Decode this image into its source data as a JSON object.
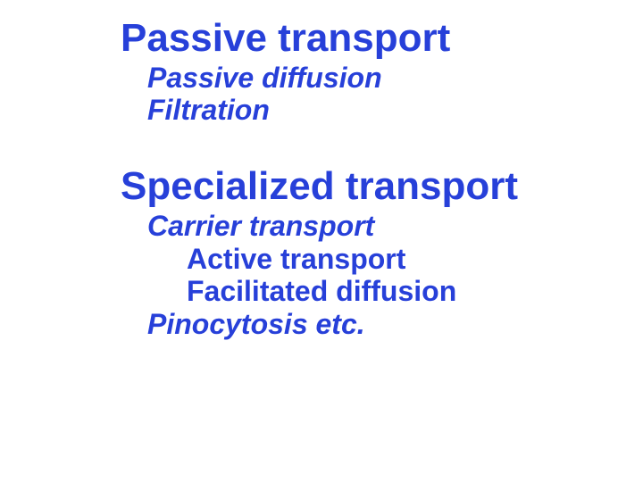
{
  "colors": {
    "heading": "#2740d9",
    "sub": "#2740d9",
    "subsub": "#2740d9",
    "background": "#ffffff"
  },
  "fontsizes": {
    "heading_pt": 44,
    "sub_pt": 32,
    "subsub_pt": 32
  },
  "group1": {
    "heading": "Passive transport",
    "items": [
      "Passive diffusion",
      "Filtration"
    ]
  },
  "group2": {
    "heading": "Specialized transport",
    "items": [
      {
        "label": "Carrier transport",
        "style": "sub"
      },
      {
        "label": "Active transport",
        "style": "subsub"
      },
      {
        "label": "Facilitated diffusion",
        "style": "subsub"
      },
      {
        "label": "Pinocytosis etc.",
        "style": "sub"
      }
    ]
  }
}
